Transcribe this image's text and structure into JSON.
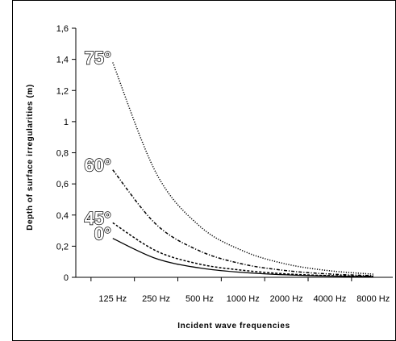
{
  "chart_data": {
    "type": "line",
    "title": "",
    "xlabel": "Incident wave frequencies",
    "ylabel": "Depth of surface irregularities (m)",
    "categories": [
      "125 Hz",
      "250 Hz",
      "500 Hz",
      "1000 Hz",
      "2000 Hz",
      "4000 Hz",
      "8000 Hz"
    ],
    "ylim": [
      0,
      1.6
    ],
    "yticks": [
      "0",
      "0,2",
      "0,4",
      "0,6",
      "0,8",
      "1",
      "1,2",
      "1,4",
      "1,6"
    ],
    "grid": false,
    "legend": "none",
    "series": [
      {
        "label": "75°",
        "style": "dotted",
        "values": [
          1.38,
          0.67,
          0.33,
          0.17,
          0.085,
          0.042,
          0.02
        ]
      },
      {
        "label": "60°",
        "style": "dash-dot",
        "values": [
          0.69,
          0.34,
          0.17,
          0.085,
          0.043,
          0.021,
          0.011
        ]
      },
      {
        "label": "45°",
        "style": "dashed",
        "values": [
          0.35,
          0.17,
          0.085,
          0.045,
          0.022,
          0.011,
          0.006
        ]
      },
      {
        "label": "0°",
        "style": "solid",
        "values": [
          0.25,
          0.12,
          0.06,
          0.031,
          0.016,
          0.008,
          0.004
        ]
      }
    ]
  }
}
